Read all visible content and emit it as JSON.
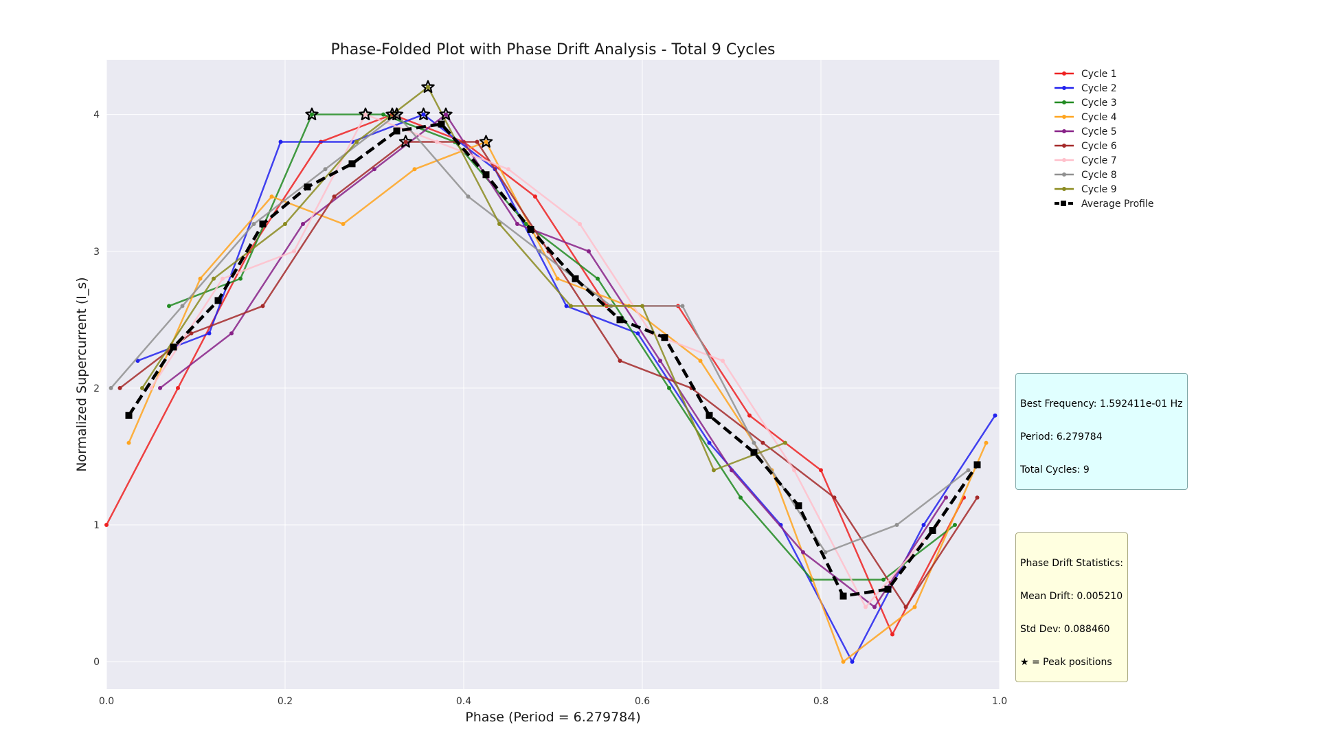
{
  "chart_data": {
    "type": "line",
    "title": "Phase-Folded Plot with Phase Drift Analysis - Total 9 Cycles",
    "xlabel": "Phase (Period = 6.279784)",
    "ylabel": "Normalized Supercurrent (I_s)",
    "xlim": [
      0.0,
      1.0
    ],
    "ylim": [
      -0.2,
      4.4
    ],
    "xticks": [
      "0.0",
      "0.2",
      "0.4",
      "0.6",
      "0.8",
      "1.0"
    ],
    "yticks": [
      "0",
      "1",
      "2",
      "3",
      "4"
    ],
    "grid": true,
    "legend_position": "upper-right-outside",
    "series": [
      {
        "name": "Cycle 1",
        "color": "#ee2222",
        "x": [
          0.0,
          0.08,
          0.16,
          0.24,
          0.32,
          0.4,
          0.48,
          0.56,
          0.64,
          0.72,
          0.8,
          0.88,
          0.96
        ],
        "y": [
          1.0,
          2.0,
          3.0,
          3.8,
          4.0,
          3.8,
          3.4,
          2.6,
          2.6,
          1.8,
          1.4,
          0.2,
          1.2
        ]
      },
      {
        "name": "Cycle 2",
        "color": "#2222ee",
        "x": [
          0.035,
          0.115,
          0.195,
          0.275,
          0.355,
          0.435,
          0.515,
          0.595,
          0.675,
          0.755,
          0.835,
          0.915,
          0.995
        ],
        "y": [
          2.2,
          2.4,
          3.8,
          3.8,
          4.0,
          3.6,
          2.6,
          2.4,
          1.6,
          1.0,
          0.0,
          1.0,
          1.8
        ]
      },
      {
        "name": "Cycle 3",
        "color": "#228b22",
        "x": [
          0.07,
          0.15,
          0.23,
          0.31,
          0.39,
          0.47,
          0.55,
          0.63,
          0.71,
          0.79,
          0.87,
          0.95
        ],
        "y": [
          2.6,
          2.8,
          4.0,
          4.0,
          3.8,
          3.2,
          2.8,
          2.0,
          1.2,
          0.6,
          0.6,
          1.0
        ]
      },
      {
        "name": "Cycle 4",
        "color": "#ffa520",
        "x": [
          0.025,
          0.105,
          0.185,
          0.265,
          0.345,
          0.425,
          0.505,
          0.585,
          0.665,
          0.745,
          0.825,
          0.905,
          0.985
        ],
        "y": [
          1.6,
          2.8,
          3.4,
          3.2,
          3.6,
          3.8,
          2.8,
          2.6,
          2.2,
          1.4,
          0.0,
          0.4,
          1.6
        ]
      },
      {
        "name": "Cycle 5",
        "color": "#882288",
        "x": [
          0.06,
          0.14,
          0.22,
          0.3,
          0.38,
          0.46,
          0.54,
          0.62,
          0.7,
          0.78,
          0.86,
          0.94
        ],
        "y": [
          2.0,
          2.4,
          3.2,
          3.6,
          4.0,
          3.2,
          3.0,
          2.2,
          1.4,
          0.8,
          0.4,
          1.2
        ]
      },
      {
        "name": "Cycle 6",
        "color": "#a52a2a",
        "x": [
          0.015,
          0.095,
          0.175,
          0.255,
          0.335,
          0.415,
          0.495,
          0.575,
          0.655,
          0.735,
          0.815,
          0.895,
          0.975
        ],
        "y": [
          2.0,
          2.4,
          2.6,
          3.4,
          3.8,
          3.8,
          3.0,
          2.2,
          2.0,
          1.6,
          1.2,
          0.4,
          1.2
        ]
      },
      {
        "name": "Cycle 7",
        "color": "#ffc0cb",
        "x": [
          0.05,
          0.13,
          0.21,
          0.29,
          0.37,
          0.45,
          0.53,
          0.61,
          0.69,
          0.77,
          0.85,
          0.93
        ],
        "y": [
          2.0,
          2.8,
          3.0,
          4.0,
          3.8,
          3.6,
          3.2,
          2.4,
          2.2,
          1.4,
          0.4,
          1.0
        ]
      },
      {
        "name": "Cycle 8",
        "color": "#909090",
        "x": [
          0.005,
          0.085,
          0.165,
          0.245,
          0.325,
          0.405,
          0.485,
          0.565,
          0.645,
          0.725,
          0.805,
          0.885,
          0.965
        ],
        "y": [
          2.0,
          2.6,
          3.2,
          3.6,
          4.0,
          3.4,
          3.0,
          2.6,
          2.6,
          1.6,
          0.8,
          1.0,
          1.4
        ]
      },
      {
        "name": "Cycle 9",
        "color": "#8b8b20",
        "x": [
          0.04,
          0.12,
          0.2,
          0.28,
          0.36,
          0.44,
          0.52,
          0.6,
          0.68,
          0.76
        ],
        "y": [
          2.0,
          2.8,
          3.2,
          3.8,
          4.2,
          3.2,
          2.6,
          2.6,
          1.4,
          1.6
        ]
      }
    ],
    "average_profile": {
      "name": "Average Profile",
      "color": "#000000",
      "x": [
        0.025,
        0.075,
        0.125,
        0.175,
        0.225,
        0.275,
        0.325,
        0.375,
        0.425,
        0.475,
        0.525,
        0.575,
        0.625,
        0.675,
        0.725,
        0.775,
        0.825,
        0.875,
        0.925,
        0.975
      ],
      "y": [
        1.8,
        2.3,
        2.64,
        3.2,
        3.47,
        3.64,
        3.88,
        3.93,
        3.56,
        3.16,
        2.8,
        2.5,
        2.37,
        1.8,
        1.53,
        1.14,
        0.48,
        0.53,
        0.96,
        1.44
      ]
    },
    "peaks": {
      "label": "★ = Peak positions",
      "x": [
        0.23,
        0.29,
        0.32,
        0.325,
        0.335,
        0.355,
        0.36,
        0.38,
        0.425
      ],
      "y": [
        4.0,
        4.0,
        4.0,
        4.0,
        3.8,
        4.0,
        4.2,
        4.0,
        3.8
      ]
    }
  },
  "info_box": {
    "lines": [
      "Best Frequency: 1.592411e-01 Hz",
      "Period: 6.279784",
      "Total Cycles: 9"
    ]
  },
  "drift_box": {
    "lines": [
      "Phase Drift Statistics:",
      "Mean Drift: 0.005210",
      "Std Dev: 0.088460",
      "★ = Peak positions"
    ]
  }
}
